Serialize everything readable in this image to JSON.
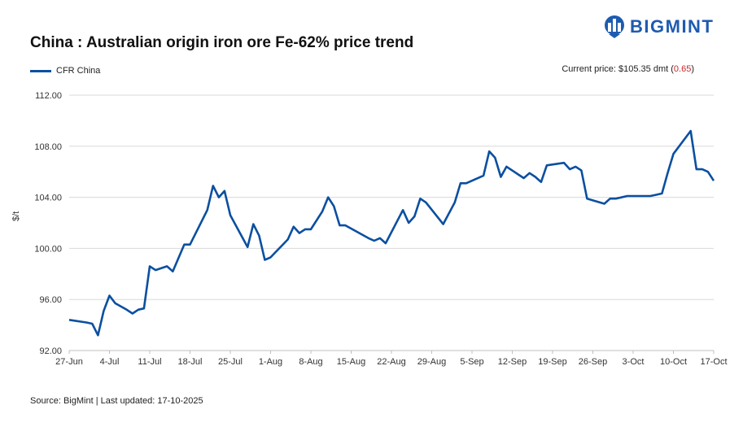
{
  "header": {
    "title": "China : Australian origin iron ore Fe-62% price trend",
    "brand": "BIGMINT",
    "current_label": "Current price: $105.35 dmt (",
    "current_change": "0.65",
    "current_close": ")"
  },
  "footer": {
    "source": "Source: BigMint | Last updated: 17-10-2025"
  },
  "colors": {
    "line": "#0b4fa0",
    "grid": "#d9d9d9",
    "brand": "#1e5bb0",
    "negative": "#d2232a"
  },
  "chart_data": {
    "type": "line",
    "title": "China : Australian origin iron ore Fe-62% price trend",
    "xlabel": "",
    "ylabel": "$/t",
    "ylim": [
      92,
      112
    ],
    "yticks": [
      "112.00",
      "108.00",
      "104.00",
      "100.00",
      "96.00",
      "92.00"
    ],
    "ytick_values": [
      112,
      108,
      104,
      100,
      96,
      92
    ],
    "xlim": [
      0,
      112
    ],
    "xticks": [
      {
        "label": "27-Jun",
        "day": 0
      },
      {
        "label": "4-Jul",
        "day": 7
      },
      {
        "label": "11-Jul",
        "day": 14
      },
      {
        "label": "18-Jul",
        "day": 21
      },
      {
        "label": "25-Jul",
        "day": 28
      },
      {
        "label": "1-Aug",
        "day": 35
      },
      {
        "label": "8-Aug",
        "day": 42
      },
      {
        "label": "15-Aug",
        "day": 49
      },
      {
        "label": "22-Aug",
        "day": 56
      },
      {
        "label": "29-Aug",
        "day": 63
      },
      {
        "label": "5-Sep",
        "day": 70
      },
      {
        "label": "12-Sep",
        "day": 77
      },
      {
        "label": "19-Sep",
        "day": 84
      },
      {
        "label": "26-Sep",
        "day": 91
      },
      {
        "label": "3-Oct",
        "day": 98
      },
      {
        "label": "10-Oct",
        "day": 105
      },
      {
        "label": "17-Oct",
        "day": 112
      }
    ],
    "series": [
      {
        "name": "CFR China",
        "points": [
          [
            0,
            94.4
          ],
          [
            3,
            94.2
          ],
          [
            4,
            94.1
          ],
          [
            5,
            93.2
          ],
          [
            6,
            95.1
          ],
          [
            7,
            96.3
          ],
          [
            8,
            95.7
          ],
          [
            10,
            95.2
          ],
          [
            11,
            94.9
          ],
          [
            12,
            95.2
          ],
          [
            13,
            95.3
          ],
          [
            14,
            98.6
          ],
          [
            15,
            98.3
          ],
          [
            17,
            98.6
          ],
          [
            18,
            98.2
          ],
          [
            20,
            100.3
          ],
          [
            21,
            100.3
          ],
          [
            24,
            103.0
          ],
          [
            25,
            104.9
          ],
          [
            26,
            104.0
          ],
          [
            27,
            104.5
          ],
          [
            28,
            102.6
          ],
          [
            31,
            100.1
          ],
          [
            32,
            101.9
          ],
          [
            33,
            101.0
          ],
          [
            34,
            99.1
          ],
          [
            35,
            99.3
          ],
          [
            38,
            100.7
          ],
          [
            39,
            101.7
          ],
          [
            40,
            101.2
          ],
          [
            41,
            101.5
          ],
          [
            42,
            101.5
          ],
          [
            44,
            102.9
          ],
          [
            45,
            104.0
          ],
          [
            46,
            103.3
          ],
          [
            47,
            101.8
          ],
          [
            48,
            101.8
          ],
          [
            52,
            100.8
          ],
          [
            53,
            100.6
          ],
          [
            54,
            100.8
          ],
          [
            55,
            100.4
          ],
          [
            58,
            103.0
          ],
          [
            59,
            102.0
          ],
          [
            60,
            102.5
          ],
          [
            61,
            103.9
          ],
          [
            62,
            103.6
          ],
          [
            65,
            101.9
          ],
          [
            67,
            103.6
          ],
          [
            68,
            105.1
          ],
          [
            69,
            105.1
          ],
          [
            72,
            105.7
          ],
          [
            73,
            107.6
          ],
          [
            74,
            107.1
          ],
          [
            75,
            105.6
          ],
          [
            76,
            106.4
          ],
          [
            79,
            105.5
          ],
          [
            80,
            105.9
          ],
          [
            81,
            105.6
          ],
          [
            82,
            105.2
          ],
          [
            83,
            106.5
          ],
          [
            86,
            106.7
          ],
          [
            87,
            106.2
          ],
          [
            88,
            106.4
          ],
          [
            89,
            106.1
          ],
          [
            90,
            103.9
          ],
          [
            93,
            103.5
          ],
          [
            94,
            103.9
          ],
          [
            95,
            103.9
          ],
          [
            97,
            104.1
          ],
          [
            101,
            104.1
          ],
          [
            102,
            104.2
          ],
          [
            103,
            104.3
          ],
          [
            104,
            105.9
          ],
          [
            105,
            107.4
          ],
          [
            108,
            109.2
          ],
          [
            109,
            106.2
          ],
          [
            110,
            106.2
          ],
          [
            111,
            106.0
          ],
          [
            112,
            105.3
          ]
        ]
      }
    ]
  }
}
